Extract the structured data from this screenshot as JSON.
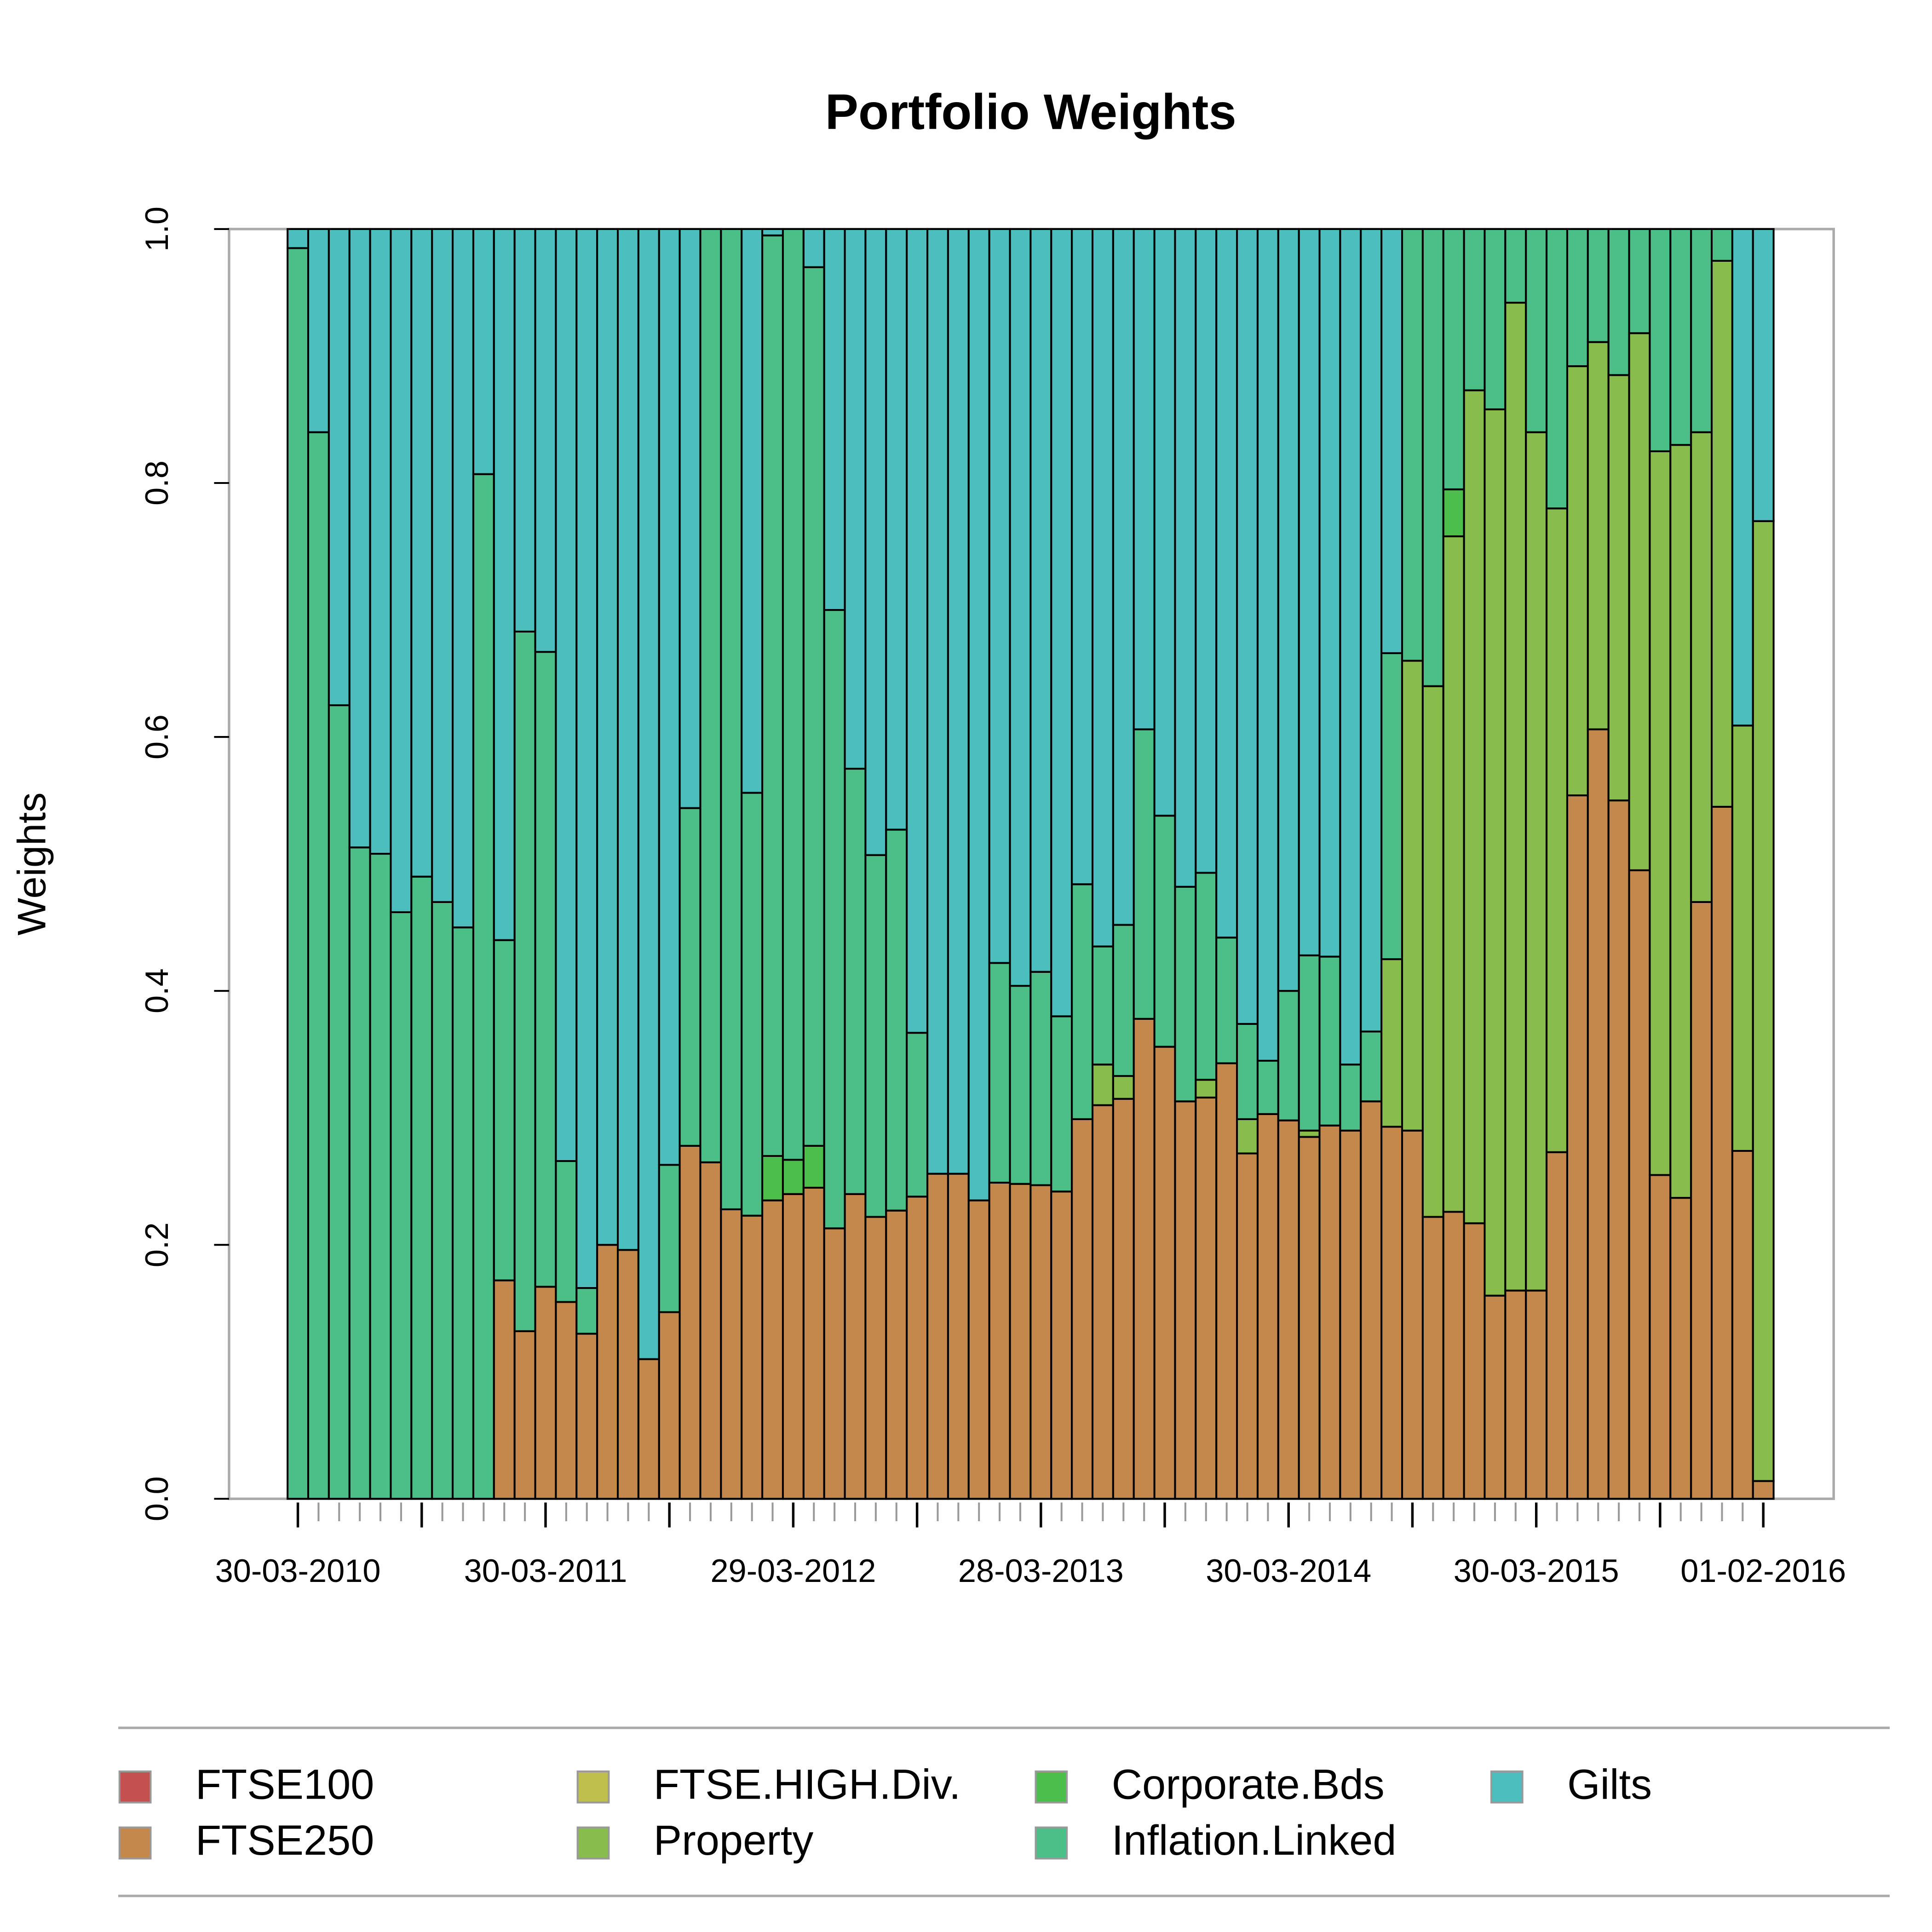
{
  "chart_data": {
    "type": "stacked_bar",
    "title": "Portfolio Weights",
    "y_label": "Weights",
    "categories": [
      "30-03-2010",
      null,
      null,
      null,
      null,
      null,
      null,
      null,
      null,
      null,
      null,
      null,
      "30-03-2011",
      null,
      null,
      null,
      null,
      null,
      null,
      null,
      null,
      null,
      null,
      null,
      "29-03-2012",
      null,
      null,
      null,
      null,
      null,
      null,
      null,
      null,
      null,
      null,
      null,
      "28-03-2013",
      null,
      null,
      null,
      null,
      null,
      null,
      null,
      null,
      null,
      null,
      null,
      "30-03-2014",
      null,
      null,
      null,
      null,
      null,
      null,
      null,
      null,
      null,
      null,
      null,
      "30-03-2015",
      null,
      null,
      null,
      null,
      null,
      null,
      null,
      null,
      null,
      null,
      "01-02-2016"
    ],
    "ylim": [
      0,
      1
    ],
    "yticks": [
      {
        "value": 0,
        "label": "0.0"
      },
      0.2,
      0.4,
      0.6,
      0.8,
      {
        "value": 1,
        "label": "1.0"
      }
    ],
    "series": [
      {
        "name": "FTSE100",
        "color": "#c55050",
        "values": [
          0,
          0,
          0,
          0,
          0,
          0,
          0,
          0,
          0,
          0,
          0,
          0,
          0,
          0,
          0,
          0,
          0,
          0,
          0,
          0,
          0,
          0,
          0,
          0,
          0,
          0,
          0,
          0,
          0,
          0,
          0,
          0,
          0,
          0,
          0,
          0,
          0,
          0,
          0,
          0,
          0,
          0,
          0,
          0,
          0,
          0,
          0,
          0,
          0,
          0,
          0,
          0,
          0,
          0,
          0,
          0,
          0,
          0,
          0,
          0,
          0,
          0,
          0,
          0,
          0,
          0,
          0,
          0,
          0,
          0,
          0,
          0
        ]
      },
      {
        "name": "FTSE250",
        "color": "#c4884d",
        "values": [
          0,
          0,
          0,
          0,
          0,
          0,
          0,
          0,
          0,
          0,
          0.172,
          0.132,
          0.167,
          0.155,
          0.13,
          0.2,
          0.196,
          0.11,
          0.147,
          0.278,
          0.265,
          0.228,
          0.223,
          0.235,
          0.24,
          0.245,
          0.213,
          0.24,
          0.222,
          0.227,
          0.238,
          0.256,
          0.256,
          0.235,
          0.249,
          0.248,
          0.247,
          0.242,
          0.299,
          0.31,
          0.315,
          0.378,
          0.356,
          0.313,
          0.316,
          0.343,
          0.272,
          0.303,
          0.298,
          0.285,
          0.294,
          0.29,
          0.313,
          0.293,
          0.29,
          0.222,
          0.226,
          0.217,
          0.16,
          0.164,
          0.164,
          0.273,
          0.554,
          0.606,
          0.55,
          0.495,
          0.255,
          0.237,
          0.47,
          0.545,
          0.274,
          0.014
        ]
      },
      {
        "name": "FTSE.HIGH.Div.",
        "color": "#bfbf4d",
        "values": [
          0,
          0,
          0,
          0,
          0,
          0,
          0,
          0,
          0,
          0,
          0,
          0,
          0,
          0,
          0,
          0,
          0,
          0,
          0,
          0,
          0,
          0,
          0,
          0,
          0,
          0,
          0,
          0,
          0,
          0,
          0,
          0,
          0,
          0,
          0,
          0,
          0,
          0,
          0,
          0,
          0,
          0,
          0,
          0,
          0,
          0,
          0,
          0,
          0,
          0,
          0,
          0,
          0,
          0,
          0,
          0,
          0,
          0,
          0,
          0,
          0,
          0,
          0,
          0,
          0,
          0,
          0,
          0,
          0,
          0,
          0,
          0
        ]
      },
      {
        "name": "Property",
        "color": "#88bc4c",
        "values": [
          0,
          0,
          0,
          0,
          0,
          0,
          0,
          0,
          0,
          0,
          0,
          0,
          0,
          0,
          0,
          0,
          0,
          0,
          0,
          0,
          0,
          0,
          0,
          0,
          0,
          0,
          0,
          0,
          0,
          0,
          0,
          0,
          0,
          0,
          0,
          0,
          0,
          0,
          0,
          0.032,
          0.018,
          0,
          0,
          0,
          0.014,
          0,
          0.027,
          0,
          0,
          0.005,
          0,
          0,
          0,
          0.132,
          0.37,
          0.418,
          0.532,
          0.656,
          0.698,
          0.778,
          0.676,
          0.507,
          0.338,
          0.305,
          0.335,
          0.423,
          0.57,
          0.593,
          0.37,
          0.43,
          0.335,
          0.756
        ]
      },
      {
        "name": "Corporate.Bds",
        "color": "#4cbe4c",
        "values": [
          0,
          0,
          0,
          0,
          0,
          0,
          0,
          0,
          0,
          0,
          0,
          0,
          0,
          0,
          0,
          0,
          0,
          0,
          0,
          0,
          0,
          0,
          0,
          0.035,
          0.027,
          0.033,
          0,
          0,
          0,
          0,
          0,
          0,
          0,
          0,
          0,
          0,
          0,
          0,
          0,
          0,
          0,
          0,
          0,
          0,
          0,
          0,
          0,
          0,
          0,
          0,
          0,
          0,
          0,
          0,
          0,
          0,
          0.037,
          0,
          0,
          0,
          0,
          0,
          0,
          0,
          0,
          0,
          0,
          0,
          0,
          0,
          0,
          0
        ]
      },
      {
        "name": "Inflation.Linked",
        "color": "#4cbe88",
        "values": [
          0.985,
          0.84,
          0.625,
          0.513,
          0.508,
          0.462,
          0.49,
          0.47,
          0.45,
          0.807,
          0.268,
          0.551,
          0.5,
          0.111,
          0.036,
          0,
          0,
          0,
          0.116,
          0.266,
          0.735,
          0.772,
          0.333,
          0.725,
          0.733,
          0.692,
          0.487,
          0.335,
          0.285,
          0.3,
          0.129,
          0,
          0,
          0,
          0.173,
          0.156,
          0.168,
          0.138,
          0.185,
          0.093,
          0.119,
          0.228,
          0.182,
          0.169,
          0.163,
          0.099,
          0.075,
          0.042,
          0.102,
          0.138,
          0.133,
          0.052,
          0.055,
          0.241,
          0.34,
          0.36,
          0.205,
          0.127,
          0.142,
          0.058,
          0.16,
          0.22,
          0.108,
          0.089,
          0.115,
          0.082,
          0.175,
          0.17,
          0.16,
          0.025,
          0,
          0
        ]
      },
      {
        "name": "Gilts",
        "color": "#4cbebe",
        "values": [
          0.015,
          0.16,
          0.375,
          0.487,
          0.492,
          0.538,
          0.51,
          0.53,
          0.55,
          0.193,
          0.56,
          0.317,
          0.333,
          0.734,
          0.834,
          0.8,
          0.804,
          0.89,
          0.737,
          0.456,
          0,
          0,
          0.444,
          0.005,
          0,
          0.03,
          0.3,
          0.425,
          0.493,
          0.473,
          0.633,
          0.744,
          0.744,
          0.765,
          0.578,
          0.596,
          0.585,
          0.62,
          0.516,
          0.565,
          0.548,
          0.394,
          0.462,
          0.518,
          0.507,
          0.558,
          0.626,
          0.655,
          0.6,
          0.572,
          0.573,
          0.658,
          0.632,
          0.334,
          0,
          0,
          0,
          0,
          0,
          0,
          0,
          0,
          0,
          0,
          0,
          0,
          0,
          0,
          0,
          0,
          0.391,
          0.23
        ]
      }
    ]
  }
}
